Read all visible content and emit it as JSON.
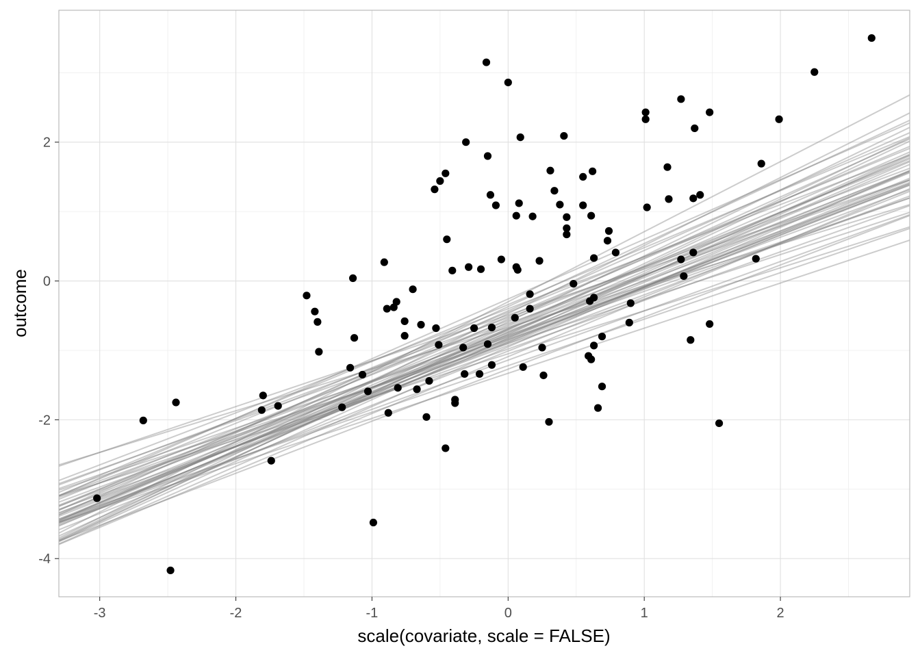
{
  "chart_data": {
    "type": "scatter",
    "title": "",
    "xlabel": "scale(covariate, scale = FALSE)",
    "ylabel": "outcome",
    "xlim": [
      -3.3,
      2.95
    ],
    "ylim": [
      -4.55,
      3.9
    ],
    "grid": true,
    "legend": "none",
    "x_ticks": [
      -3,
      -2,
      -1,
      0,
      1,
      2
    ],
    "x_tick_labels": [
      "-3",
      "-2",
      "-1",
      "0",
      "1",
      "2"
    ],
    "y_ticks": [
      -4,
      -2,
      0,
      2
    ],
    "y_tick_labels": [
      "-4",
      "-2",
      "0",
      "2"
    ],
    "colors": {
      "points": "#000000",
      "lines": "#808080",
      "panel_border": "#b3b3b3",
      "major_grid": "#e0e0e0",
      "minor_grid": "#f0f0f0"
    },
    "points": [
      [
        -3.02,
        -3.13
      ],
      [
        -2.68,
        -2.01
      ],
      [
        -2.48,
        -4.17
      ],
      [
        -2.44,
        -1.75
      ],
      [
        -1.8,
        -1.65
      ],
      [
        -1.81,
        -1.86
      ],
      [
        -1.74,
        -2.59
      ],
      [
        -1.69,
        -1.8
      ],
      [
        -1.48,
        -0.21
      ],
      [
        -1.42,
        -0.44
      ],
      [
        -1.4,
        -0.59
      ],
      [
        -1.39,
        -1.02
      ],
      [
        -1.22,
        -1.82
      ],
      [
        -1.16,
        -1.25
      ],
      [
        -1.14,
        0.04
      ],
      [
        -1.13,
        -0.82
      ],
      [
        -1.07,
        -1.35
      ],
      [
        -1.03,
        -1.59
      ],
      [
        -0.99,
        -3.48
      ],
      [
        -0.91,
        0.27
      ],
      [
        -0.89,
        -0.4
      ],
      [
        -0.88,
        -1.9
      ],
      [
        -0.84,
        -0.38
      ],
      [
        -0.82,
        -0.3
      ],
      [
        -0.81,
        -1.54
      ],
      [
        -0.76,
        -0.58
      ],
      [
        -0.76,
        -0.79
      ],
      [
        -0.7,
        -0.12
      ],
      [
        -0.67,
        -1.56
      ],
      [
        -0.64,
        -0.63
      ],
      [
        -0.6,
        -1.96
      ],
      [
        -0.58,
        -1.44
      ],
      [
        -0.54,
        1.32
      ],
      [
        -0.53,
        -0.68
      ],
      [
        -0.51,
        -0.92
      ],
      [
        -0.5,
        1.44
      ],
      [
        -0.46,
        1.55
      ],
      [
        -0.46,
        -2.41
      ],
      [
        -0.45,
        0.6
      ],
      [
        -0.41,
        0.15
      ],
      [
        -0.39,
        -1.71
      ],
      [
        -0.39,
        -1.76
      ],
      [
        -0.33,
        -0.96
      ],
      [
        -0.32,
        -1.34
      ],
      [
        -0.31,
        2.0
      ],
      [
        -0.29,
        0.2
      ],
      [
        -0.25,
        -0.68
      ],
      [
        -0.21,
        -1.34
      ],
      [
        -0.2,
        0.17
      ],
      [
        -0.16,
        3.15
      ],
      [
        -0.15,
        1.8
      ],
      [
        -0.15,
        -0.91
      ],
      [
        -0.13,
        1.24
      ],
      [
        -0.12,
        -0.67
      ],
      [
        -0.12,
        -1.21
      ],
      [
        -0.09,
        1.09
      ],
      [
        -0.05,
        0.31
      ],
      [
        0.0,
        2.86
      ],
      [
        0.05,
        -0.53
      ],
      [
        0.06,
        0.94
      ],
      [
        0.06,
        0.2
      ],
      [
        0.07,
        0.16
      ],
      [
        0.08,
        1.12
      ],
      [
        0.09,
        2.07
      ],
      [
        0.11,
        -1.24
      ],
      [
        0.16,
        -0.19
      ],
      [
        0.16,
        -0.4
      ],
      [
        0.18,
        0.93
      ],
      [
        0.23,
        0.29
      ],
      [
        0.25,
        -0.96
      ],
      [
        0.26,
        -1.36
      ],
      [
        0.3,
        -2.03
      ],
      [
        0.31,
        1.59
      ],
      [
        0.34,
        1.3
      ],
      [
        0.38,
        1.1
      ],
      [
        0.41,
        2.09
      ],
      [
        0.43,
        0.92
      ],
      [
        0.43,
        0.76
      ],
      [
        0.43,
        0.67
      ],
      [
        0.48,
        -0.04
      ],
      [
        0.55,
        1.09
      ],
      [
        0.55,
        1.5
      ],
      [
        0.59,
        -1.08
      ],
      [
        0.6,
        -0.29
      ],
      [
        0.61,
        0.94
      ],
      [
        0.61,
        -1.13
      ],
      [
        0.62,
        1.58
      ],
      [
        0.63,
        0.33
      ],
      [
        0.63,
        -0.24
      ],
      [
        0.63,
        -0.93
      ],
      [
        0.66,
        -1.83
      ],
      [
        0.69,
        -0.8
      ],
      [
        0.69,
        -1.52
      ],
      [
        0.73,
        0.58
      ],
      [
        0.74,
        0.72
      ],
      [
        0.79,
        0.41
      ],
      [
        0.89,
        -0.6
      ],
      [
        0.9,
        -0.32
      ],
      [
        1.01,
        2.43
      ],
      [
        1.01,
        2.33
      ],
      [
        1.02,
        1.06
      ],
      [
        1.17,
        1.64
      ],
      [
        1.18,
        1.18
      ],
      [
        1.27,
        2.62
      ],
      [
        1.27,
        0.31
      ],
      [
        1.29,
        0.07
      ],
      [
        1.34,
        -0.85
      ],
      [
        1.36,
        0.41
      ],
      [
        1.36,
        1.19
      ],
      [
        1.37,
        2.2
      ],
      [
        1.41,
        1.24
      ],
      [
        1.48,
        2.43
      ],
      [
        1.48,
        -0.62
      ],
      [
        1.55,
        -2.05
      ],
      [
        1.82,
        0.32
      ],
      [
        1.86,
        1.69
      ],
      [
        1.99,
        2.33
      ],
      [
        2.25,
        3.01
      ],
      [
        2.67,
        3.5
      ]
    ],
    "lines": [
      [
        -1.33,
        0.65
      ],
      [
        -1.27,
        0.75
      ],
      [
        -1.22,
        0.67
      ],
      [
        -1.14,
        0.71
      ],
      [
        -1.09,
        0.82
      ],
      [
        -1.05,
        0.62
      ],
      [
        -1.01,
        0.78
      ],
      [
        -0.98,
        0.7
      ],
      [
        -0.95,
        0.86
      ],
      [
        -0.93,
        0.73
      ],
      [
        -0.9,
        0.64
      ],
      [
        -0.88,
        0.8
      ],
      [
        -0.86,
        0.76
      ],
      [
        -0.84,
        0.69
      ],
      [
        -0.82,
        0.89
      ],
      [
        -0.8,
        0.74
      ],
      [
        -0.78,
        0.67
      ],
      [
        -0.76,
        0.84
      ],
      [
        -0.74,
        0.79
      ],
      [
        -0.72,
        0.72
      ],
      [
        -0.7,
        0.92
      ],
      [
        -0.69,
        0.77
      ],
      [
        -0.67,
        0.6
      ],
      [
        -0.65,
        0.85
      ],
      [
        -0.63,
        0.81
      ],
      [
        -0.61,
        0.7
      ],
      [
        -0.59,
        0.95
      ],
      [
        -0.57,
        0.78
      ],
      [
        -0.55,
        0.88
      ],
      [
        -0.53,
        0.73
      ],
      [
        -0.51,
        0.83
      ],
      [
        -0.49,
        0.66
      ],
      [
        -0.47,
        0.98
      ],
      [
        -0.45,
        0.8
      ],
      [
        -0.43,
        0.87
      ],
      [
        -0.4,
        0.75
      ],
      [
        -0.37,
        0.91
      ],
      [
        -0.34,
        0.82
      ],
      [
        -0.3,
        1.01
      ],
      [
        -0.26,
        0.86
      ],
      [
        -0.88,
        0.79
      ],
      [
        -0.85,
        0.77
      ],
      [
        -0.83,
        0.81
      ],
      [
        -0.79,
        0.8
      ],
      [
        -0.74,
        0.82
      ],
      [
        -0.9,
        0.78
      ],
      [
        -0.7,
        0.84
      ],
      [
        -0.77,
        0.88
      ],
      [
        -0.68,
        0.93
      ],
      [
        -0.81,
        0.72
      ]
    ]
  }
}
